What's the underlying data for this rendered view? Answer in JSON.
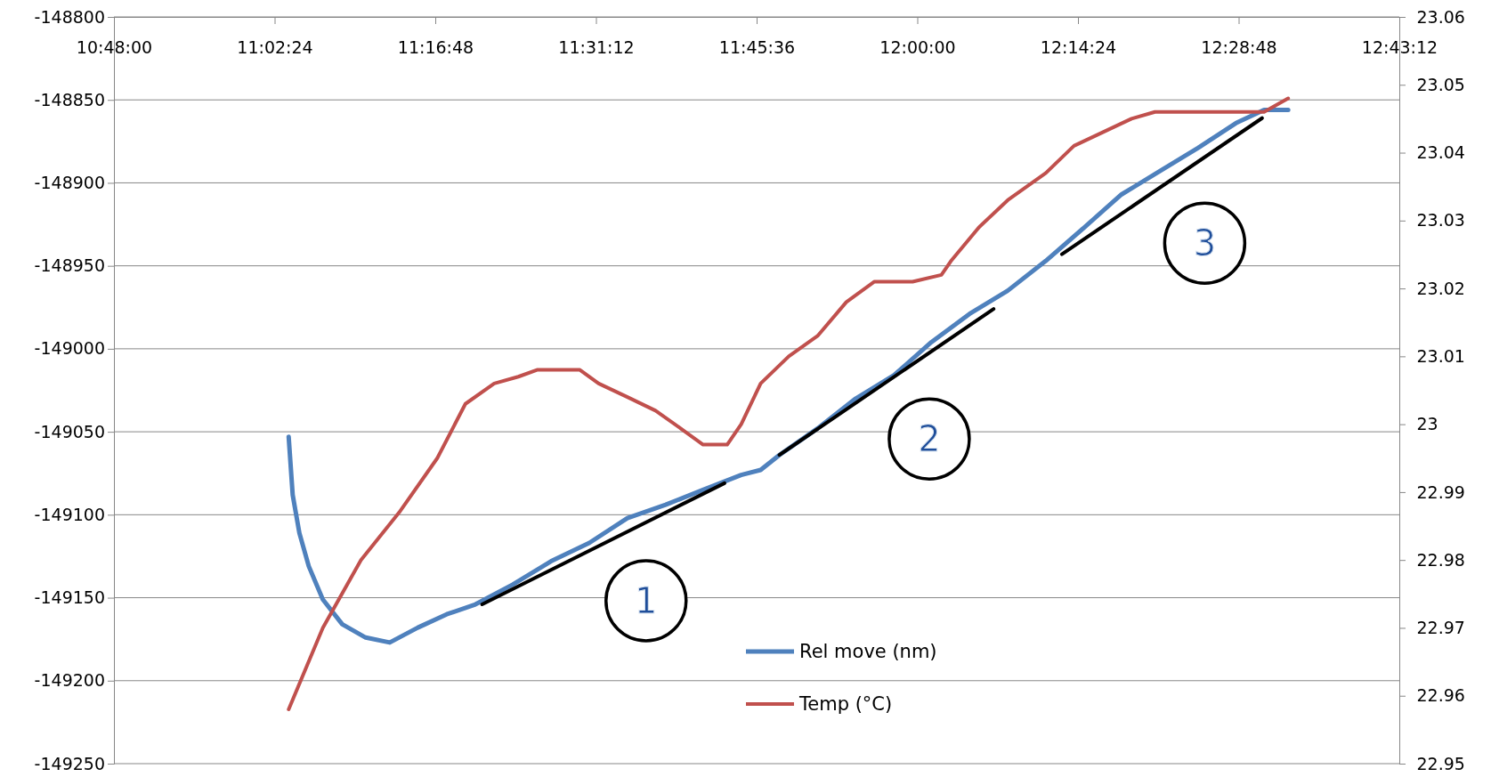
{
  "chart_data": {
    "type": "line",
    "xlim": [
      10.8,
      12.72
    ],
    "xticks": [
      {
        "value": 10.8,
        "label": "10:48:00"
      },
      {
        "value": 11.04,
        "label": "11:02:24"
      },
      {
        "value": 11.28,
        "label": "11:16:48"
      },
      {
        "value": 11.52,
        "label": "11:31:12"
      },
      {
        "value": 11.76,
        "label": "11:45:36"
      },
      {
        "value": 12.0,
        "label": "12:00:00"
      },
      {
        "value": 12.24,
        "label": "12:14:24"
      },
      {
        "value": 12.48,
        "label": "12:28:48"
      },
      {
        "value": 12.72,
        "label": "12:43:12"
      }
    ],
    "ylim": [
      -149250,
      -148800
    ],
    "yticks": [
      -149250,
      -149200,
      -149150,
      -149100,
      -149050,
      -149000,
      -148950,
      -148900,
      -148850,
      -148800
    ],
    "y2lim": [
      22.95,
      23.06
    ],
    "y2ticks": [
      22.95,
      22.96,
      22.97,
      22.98,
      22.99,
      {
        "value": 23.0,
        "label": "23"
      },
      23.01,
      23.02,
      23.03,
      23.04,
      23.05,
      23.06
    ],
    "grid": "y",
    "legend": "bottom",
    "marker": "none",
    "line_style": "solid",
    "series": [
      {
        "name": "Rel move (nm)",
        "color": "#4f81bd",
        "x": [
          11.061,
          11.067,
          11.077,
          11.091,
          11.112,
          11.141,
          11.176,
          11.212,
          11.254,
          11.297,
          11.34,
          11.396,
          11.453,
          11.51,
          11.567,
          11.624,
          11.68,
          11.737,
          11.766,
          11.794,
          11.851,
          11.908,
          11.965,
          12.021,
          12.078,
          12.135,
          12.192,
          12.249,
          12.305,
          12.362,
          12.419,
          12.476,
          12.518,
          12.554
        ],
        "values": [
          -149053,
          -149088,
          -149111,
          -149131,
          -149151,
          -149166,
          -149174,
          -149177,
          -149168,
          -149160,
          -149154,
          -149142,
          -149128,
          -149117,
          -149102,
          -149094,
          -149085,
          -149076,
          -149073,
          -149064,
          -149048,
          -149030,
          -149016,
          -148996,
          -148979,
          -148965,
          -148947,
          -148927,
          -148907,
          -148893,
          -148879,
          -148864,
          -148856,
          -148856
        ]
      },
      {
        "name": "Temp (°C)",
        "color": "#c0504d",
        "axis": "y2",
        "x": [
          11.061,
          11.112,
          11.169,
          11.226,
          11.283,
          11.325,
          11.368,
          11.404,
          11.432,
          11.496,
          11.524,
          11.567,
          11.609,
          11.652,
          11.68,
          11.716,
          11.737,
          11.766,
          11.808,
          11.851,
          11.894,
          11.936,
          11.993,
          12.036,
          12.05,
          12.092,
          12.135,
          12.192,
          12.234,
          12.277,
          12.32,
          12.355,
          12.518,
          12.554
        ],
        "values": [
          22.958,
          22.97,
          22.98,
          22.987,
          22.995,
          23.003,
          23.006,
          23.007,
          23.008,
          23.008,
          23.006,
          23.004,
          23.002,
          22.999,
          22.997,
          22.997,
          23.0,
          23.006,
          23.01,
          23.013,
          23.018,
          23.021,
          23.021,
          23.022,
          23.024,
          23.029,
          23.033,
          23.037,
          23.041,
          23.043,
          23.045,
          23.046,
          23.046,
          23.048
        ]
      },
      {
        "type": "line",
        "color": "#000000",
        "x": [
          11.35,
          11.712
        ],
        "values": [
          -149154,
          -149081
        ]
      },
      {
        "type": "line",
        "color": "#000000",
        "x": [
          11.794,
          12.114
        ],
        "values": [
          -149064,
          -148976
        ]
      },
      {
        "type": "line",
        "color": "#000000",
        "x": [
          12.216,
          12.515
        ],
        "values": [
          -148943,
          -148861
        ]
      }
    ],
    "annotations": [
      "1",
      "2",
      "3"
    ]
  }
}
